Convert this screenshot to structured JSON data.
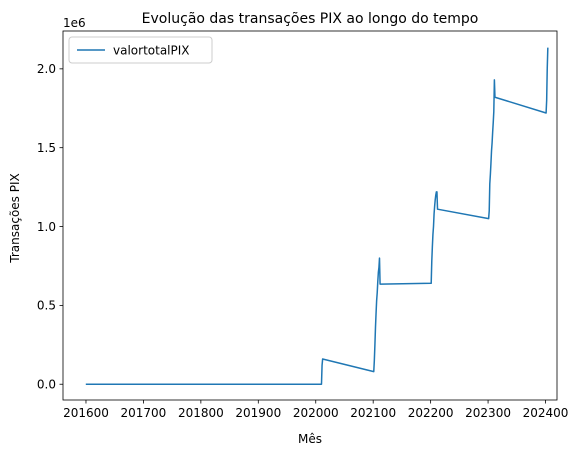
{
  "chart_data": {
    "type": "line",
    "title": "Evolução das transações PIX ao longo do tempo",
    "xlabel": "Mês",
    "ylabel": "Transações PIX",
    "y_offset_text": "1e6",
    "xlim": [
      201560,
      202420
    ],
    "ylim": [
      -0.1,
      2.24
    ],
    "x_ticks": [
      201600,
      201700,
      201800,
      201900,
      202000,
      202100,
      202200,
      202300,
      202400
    ],
    "x_tick_labels": [
      "201600",
      "201700",
      "201800",
      "201900",
      "202000",
      "202100",
      "202200",
      "202300",
      "202400"
    ],
    "y_ticks": [
      0.0,
      0.5,
      1.0,
      1.5,
      2.0
    ],
    "y_tick_labels": [
      "0.0",
      "0.5",
      "1.0",
      "1.5",
      "2.0"
    ],
    "legend": {
      "position": "top-left"
    },
    "grid": false,
    "series": [
      {
        "name": "valortotalPIX",
        "color": "#1f77b4",
        "x": [
          201601,
          201700,
          201800,
          201900,
          202010,
          202011,
          202012,
          202101,
          202102,
          202103,
          202104,
          202105,
          202106,
          202107,
          202108,
          202109,
          202110,
          202111,
          202112,
          202201,
          202202,
          202203,
          202204,
          202205,
          202206,
          202207,
          202208,
          202209,
          202210,
          202211,
          202212,
          202301,
          202302,
          202303,
          202304,
          202305,
          202306,
          202307,
          202308,
          202309,
          202310,
          202311,
          202312,
          202401,
          202402,
          202403,
          202404
        ],
        "values": [
          0,
          0,
          0,
          0,
          0.0,
          0.12,
          0.16,
          0.08,
          0.15,
          0.25,
          0.36,
          0.45,
          0.53,
          0.58,
          0.65,
          0.71,
          0.74,
          0.8,
          0.635,
          0.64,
          0.78,
          0.87,
          0.95,
          1.0,
          1.08,
          1.13,
          1.17,
          1.2,
          1.22,
          1.22,
          1.11,
          1.05,
          1.1,
          1.27,
          1.33,
          1.4,
          1.48,
          1.53,
          1.6,
          1.66,
          1.73,
          1.93,
          1.82,
          1.72,
          1.8,
          2.0,
          2.13
        ]
      }
    ]
  }
}
